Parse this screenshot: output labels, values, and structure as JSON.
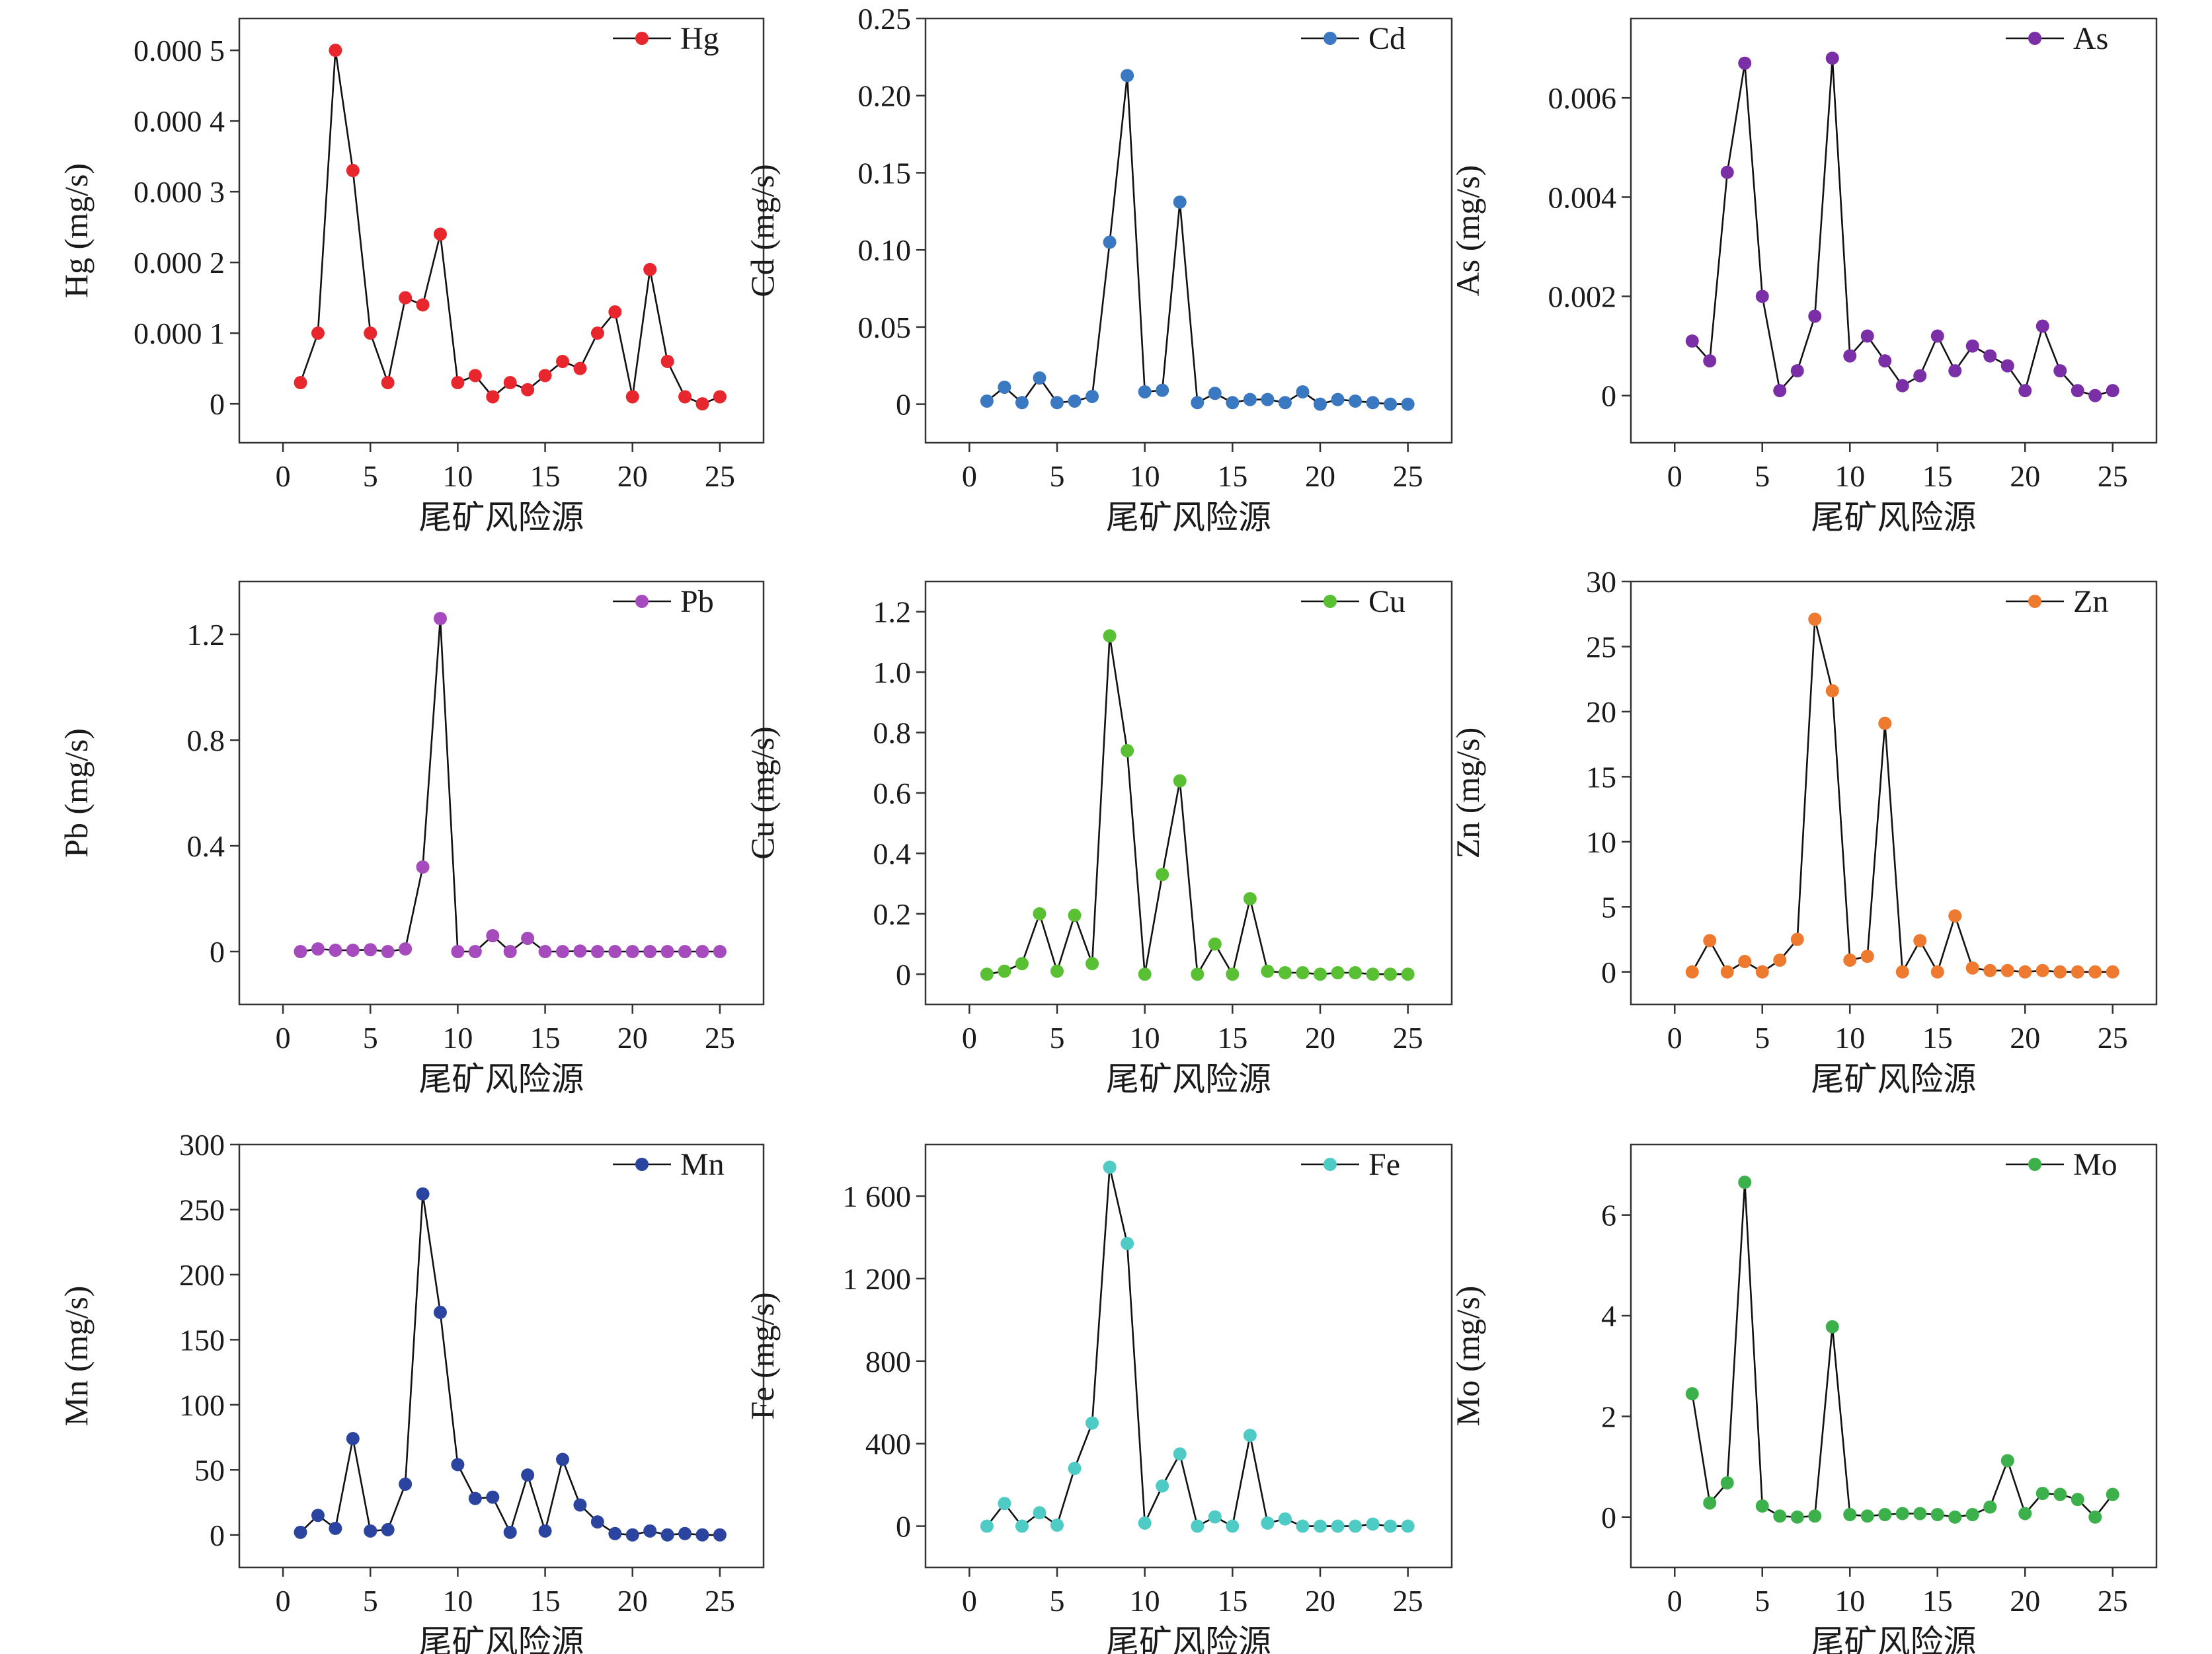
{
  "xlabel": "尾矿风险源",
  "chart_data": [
    {
      "type": "line",
      "legend": "Hg",
      "ylabel": "Hg (mg/s)",
      "color": "#e8262d",
      "x": [
        1,
        2,
        3,
        4,
        5,
        6,
        7,
        8,
        9,
        10,
        11,
        12,
        13,
        14,
        15,
        16,
        17,
        18,
        19,
        20,
        21,
        22,
        23,
        24,
        25
      ],
      "values": [
        3e-05,
        0.0001,
        0.0005,
        0.00033,
        0.0001,
        3e-05,
        0.00015,
        0.00014,
        0.00024,
        3e-05,
        4e-05,
        1e-05,
        3e-05,
        2e-05,
        4e-05,
        6e-05,
        5e-05,
        0.0001,
        0.00013,
        1e-05,
        0.00019,
        6e-05,
        1e-05,
        0.0,
        1e-05
      ],
      "xlim": [
        -2.5,
        27.5
      ],
      "ylim": [
        -5.5e-05,
        0.000545
      ],
      "xticks": [
        0,
        5,
        10,
        15,
        20,
        25
      ],
      "xtick_labels": [
        "0",
        "5",
        "10",
        "15",
        "20",
        "25"
      ],
      "yticks": [
        0,
        0.0001,
        0.0002,
        0.0003,
        0.0004,
        0.0005
      ],
      "ytick_labels": [
        "0",
        "0.000 1",
        "0.000 2",
        "0.000 3",
        "0.000 4",
        "0.000 5"
      ],
      "grid": false,
      "legend_position": "top-right"
    },
    {
      "type": "line",
      "legend": "Cd",
      "ylabel": "Cd (mg/s)",
      "color": "#3a78c2",
      "x": [
        1,
        2,
        3,
        4,
        5,
        6,
        7,
        8,
        9,
        10,
        11,
        12,
        13,
        14,
        15,
        16,
        17,
        18,
        19,
        20,
        21,
        22,
        23,
        24,
        25
      ],
      "values": [
        0.002,
        0.011,
        0.001,
        0.017,
        0.001,
        0.002,
        0.005,
        0.105,
        0.213,
        0.008,
        0.009,
        0.131,
        0.001,
        0.007,
        0.001,
        0.003,
        0.003,
        0.001,
        0.008,
        0.0,
        0.003,
        0.002,
        0.001,
        0.0,
        0.0
      ],
      "xlim": [
        -2.5,
        27.5
      ],
      "ylim": [
        -0.025,
        0.25
      ],
      "xticks": [
        0,
        5,
        10,
        15,
        20,
        25
      ],
      "xtick_labels": [
        "0",
        "5",
        "10",
        "15",
        "20",
        "25"
      ],
      "yticks": [
        0,
        0.05,
        0.1,
        0.15,
        0.2,
        0.25
      ],
      "ytick_labels": [
        "0",
        "0.05",
        "0.10",
        "0.15",
        "0.20",
        "0.25"
      ],
      "grid": false,
      "legend_position": "top-right"
    },
    {
      "type": "line",
      "legend": "As",
      "ylabel": "As (mg/s)",
      "color": "#7b2fa6",
      "x": [
        1,
        2,
        3,
        4,
        5,
        6,
        7,
        8,
        9,
        10,
        11,
        12,
        13,
        14,
        15,
        16,
        17,
        18,
        19,
        20,
        21,
        22,
        23,
        24,
        25
      ],
      "values": [
        0.0011,
        0.0007,
        0.0045,
        0.0067,
        0.002,
        0.0001,
        0.0005,
        0.0016,
        0.0068,
        0.0008,
        0.0012,
        0.0007,
        0.0002,
        0.0004,
        0.0012,
        0.0005,
        0.001,
        0.0008,
        0.0006,
        0.0001,
        0.0014,
        0.0005,
        0.0001,
        0.0,
        0.0001
      ],
      "xlim": [
        -2.5,
        27.5
      ],
      "ylim": [
        -0.00095,
        0.0076
      ],
      "xticks": [
        0,
        5,
        10,
        15,
        20,
        25
      ],
      "xtick_labels": [
        "0",
        "5",
        "10",
        "15",
        "20",
        "25"
      ],
      "yticks": [
        0,
        0.002,
        0.004,
        0.006
      ],
      "ytick_labels": [
        "0",
        "0.002",
        "0.004",
        "0.006"
      ],
      "grid": false,
      "legend_position": "top-right"
    },
    {
      "type": "line",
      "legend": "Pb",
      "ylabel": "Pb (mg/s)",
      "color": "#a54bbd",
      "x": [
        1,
        2,
        3,
        4,
        5,
        6,
        7,
        8,
        9,
        10,
        11,
        12,
        13,
        14,
        15,
        16,
        17,
        18,
        19,
        20,
        21,
        22,
        23,
        24,
        25
      ],
      "values": [
        0.0,
        0.01,
        0.005,
        0.005,
        0.007,
        0.0,
        0.01,
        0.32,
        1.26,
        0.0,
        0.0,
        0.06,
        0.0,
        0.05,
        0.0,
        0.0,
        0.002,
        0.0,
        0.0,
        0.0,
        0.0,
        0.0,
        0.0,
        0.0,
        0.0
      ],
      "xlim": [
        -2.5,
        27.5
      ],
      "ylim": [
        -0.2,
        1.4
      ],
      "xticks": [
        0,
        5,
        10,
        15,
        20,
        25
      ],
      "xtick_labels": [
        "0",
        "5",
        "10",
        "15",
        "20",
        "25"
      ],
      "yticks": [
        0,
        0.4,
        0.8,
        1.2
      ],
      "ytick_labels": [
        "0",
        "0.4",
        "0.8",
        "1.2"
      ],
      "grid": false,
      "legend_position": "top-right"
    },
    {
      "type": "line",
      "legend": "Cu",
      "ylabel": "Cu (mg/s)",
      "color": "#58c032",
      "x": [
        1,
        2,
        3,
        4,
        5,
        6,
        7,
        8,
        9,
        10,
        11,
        12,
        13,
        14,
        15,
        16,
        17,
        18,
        19,
        20,
        21,
        22,
        23,
        24,
        25
      ],
      "values": [
        0.0,
        0.01,
        0.035,
        0.2,
        0.01,
        0.195,
        0.035,
        1.12,
        0.74,
        0.0,
        0.33,
        0.64,
        0.0,
        0.1,
        0.0,
        0.25,
        0.01,
        0.005,
        0.005,
        0.0,
        0.005,
        0.005,
        0.0,
        0.0,
        0.0
      ],
      "xlim": [
        -2.5,
        27.5
      ],
      "ylim": [
        -0.1,
        1.3
      ],
      "xticks": [
        0,
        5,
        10,
        15,
        20,
        25
      ],
      "xtick_labels": [
        "0",
        "5",
        "10",
        "15",
        "20",
        "25"
      ],
      "yticks": [
        0,
        0.2,
        0.4,
        0.6,
        0.8,
        1.0,
        1.2
      ],
      "ytick_labels": [
        "0",
        "0.2",
        "0.4",
        "0.6",
        "0.8",
        "1.0",
        "1.2"
      ],
      "grid": false,
      "legend_position": "top-right"
    },
    {
      "type": "line",
      "legend": "Zn",
      "ylabel": "Zn (mg/s)",
      "color": "#ee7a30",
      "x": [
        1,
        2,
        3,
        4,
        5,
        6,
        7,
        8,
        9,
        10,
        11,
        12,
        13,
        14,
        15,
        16,
        17,
        18,
        19,
        20,
        21,
        22,
        23,
        24,
        25
      ],
      "values": [
        0.0,
        2.4,
        0.0,
        0.8,
        0.0,
        0.9,
        2.5,
        27.1,
        21.6,
        0.9,
        1.2,
        19.1,
        0.0,
        2.4,
        0.0,
        4.3,
        0.3,
        0.1,
        0.1,
        0.0,
        0.1,
        0.0,
        0.0,
        0.0,
        0.0
      ],
      "xlim": [
        -2.5,
        27.5
      ],
      "ylim": [
        -2.5,
        30
      ],
      "xticks": [
        0,
        5,
        10,
        15,
        20,
        25
      ],
      "xtick_labels": [
        "0",
        "5",
        "10",
        "15",
        "20",
        "25"
      ],
      "yticks": [
        0,
        5,
        10,
        15,
        20,
        25,
        30
      ],
      "ytick_labels": [
        "0",
        "5",
        "10",
        "15",
        "20",
        "25",
        "30"
      ],
      "grid": false,
      "legend_position": "top-right"
    },
    {
      "type": "line",
      "legend": "Mn",
      "ylabel": "Mn (mg/s)",
      "color": "#2a44a0",
      "x": [
        1,
        2,
        3,
        4,
        5,
        6,
        7,
        8,
        9,
        10,
        11,
        12,
        13,
        14,
        15,
        16,
        17,
        18,
        19,
        20,
        21,
        22,
        23,
        24,
        25
      ],
      "values": [
        2,
        15,
        5,
        74,
        3,
        4,
        39,
        262,
        171,
        54,
        28,
        29,
        2,
        46,
        3,
        58,
        23,
        10,
        1,
        0,
        3,
        0,
        1,
        0,
        0
      ],
      "xlim": [
        -2.5,
        27.5
      ],
      "ylim": [
        -25,
        300
      ],
      "xticks": [
        0,
        5,
        10,
        15,
        20,
        25
      ],
      "xtick_labels": [
        "0",
        "5",
        "10",
        "15",
        "20",
        "25"
      ],
      "yticks": [
        0,
        50,
        100,
        150,
        200,
        250,
        300
      ],
      "ytick_labels": [
        "0",
        "50",
        "100",
        "150",
        "200",
        "250",
        "300"
      ],
      "grid": false,
      "legend_position": "top-right"
    },
    {
      "type": "line",
      "legend": "Fe",
      "ylabel": "Fe (mg/s)",
      "color": "#4ecbc4",
      "x": [
        1,
        2,
        3,
        4,
        5,
        6,
        7,
        8,
        9,
        10,
        11,
        12,
        13,
        14,
        15,
        16,
        17,
        18,
        19,
        20,
        21,
        22,
        23,
        24,
        25
      ],
      "values": [
        0,
        110,
        0,
        65,
        5,
        280,
        500,
        1740,
        1370,
        15,
        195,
        350,
        0,
        45,
        0,
        440,
        15,
        35,
        0,
        0,
        0,
        0,
        10,
        0,
        0
      ],
      "xlim": [
        -2.5,
        27.5
      ],
      "ylim": [
        -200,
        1850
      ],
      "xticks": [
        0,
        5,
        10,
        15,
        20,
        25
      ],
      "xtick_labels": [
        "0",
        "5",
        "10",
        "15",
        "20",
        "25"
      ],
      "yticks": [
        0,
        400,
        800,
        1200,
        1600
      ],
      "ytick_labels": [
        "0",
        "400",
        "800",
        "1 200",
        "1 600"
      ],
      "grid": false,
      "legend_position": "top-right"
    },
    {
      "type": "line",
      "legend": "Mo",
      "ylabel": "Mo (mg/s)",
      "color": "#3cb04a",
      "x": [
        1,
        2,
        3,
        4,
        5,
        6,
        7,
        8,
        9,
        10,
        11,
        12,
        13,
        14,
        15,
        16,
        17,
        18,
        19,
        20,
        21,
        22,
        23,
        24,
        25
      ],
      "values": [
        2.45,
        0.28,
        0.68,
        6.65,
        0.22,
        0.02,
        0.0,
        0.02,
        3.78,
        0.05,
        0.02,
        0.05,
        0.07,
        0.07,
        0.05,
        0.0,
        0.05,
        0.2,
        1.12,
        0.07,
        0.47,
        0.45,
        0.35,
        0.0,
        0.45
      ],
      "xlim": [
        -2.5,
        27.5
      ],
      "ylim": [
        -1.0,
        7.4
      ],
      "xticks": [
        0,
        5,
        10,
        15,
        20,
        25
      ],
      "xtick_labels": [
        "0",
        "5",
        "10",
        "15",
        "20",
        "25"
      ],
      "yticks": [
        0,
        2,
        4,
        6
      ],
      "ytick_labels": [
        "0",
        "2",
        "4",
        "6"
      ],
      "grid": false,
      "legend_position": "top-right"
    }
  ]
}
